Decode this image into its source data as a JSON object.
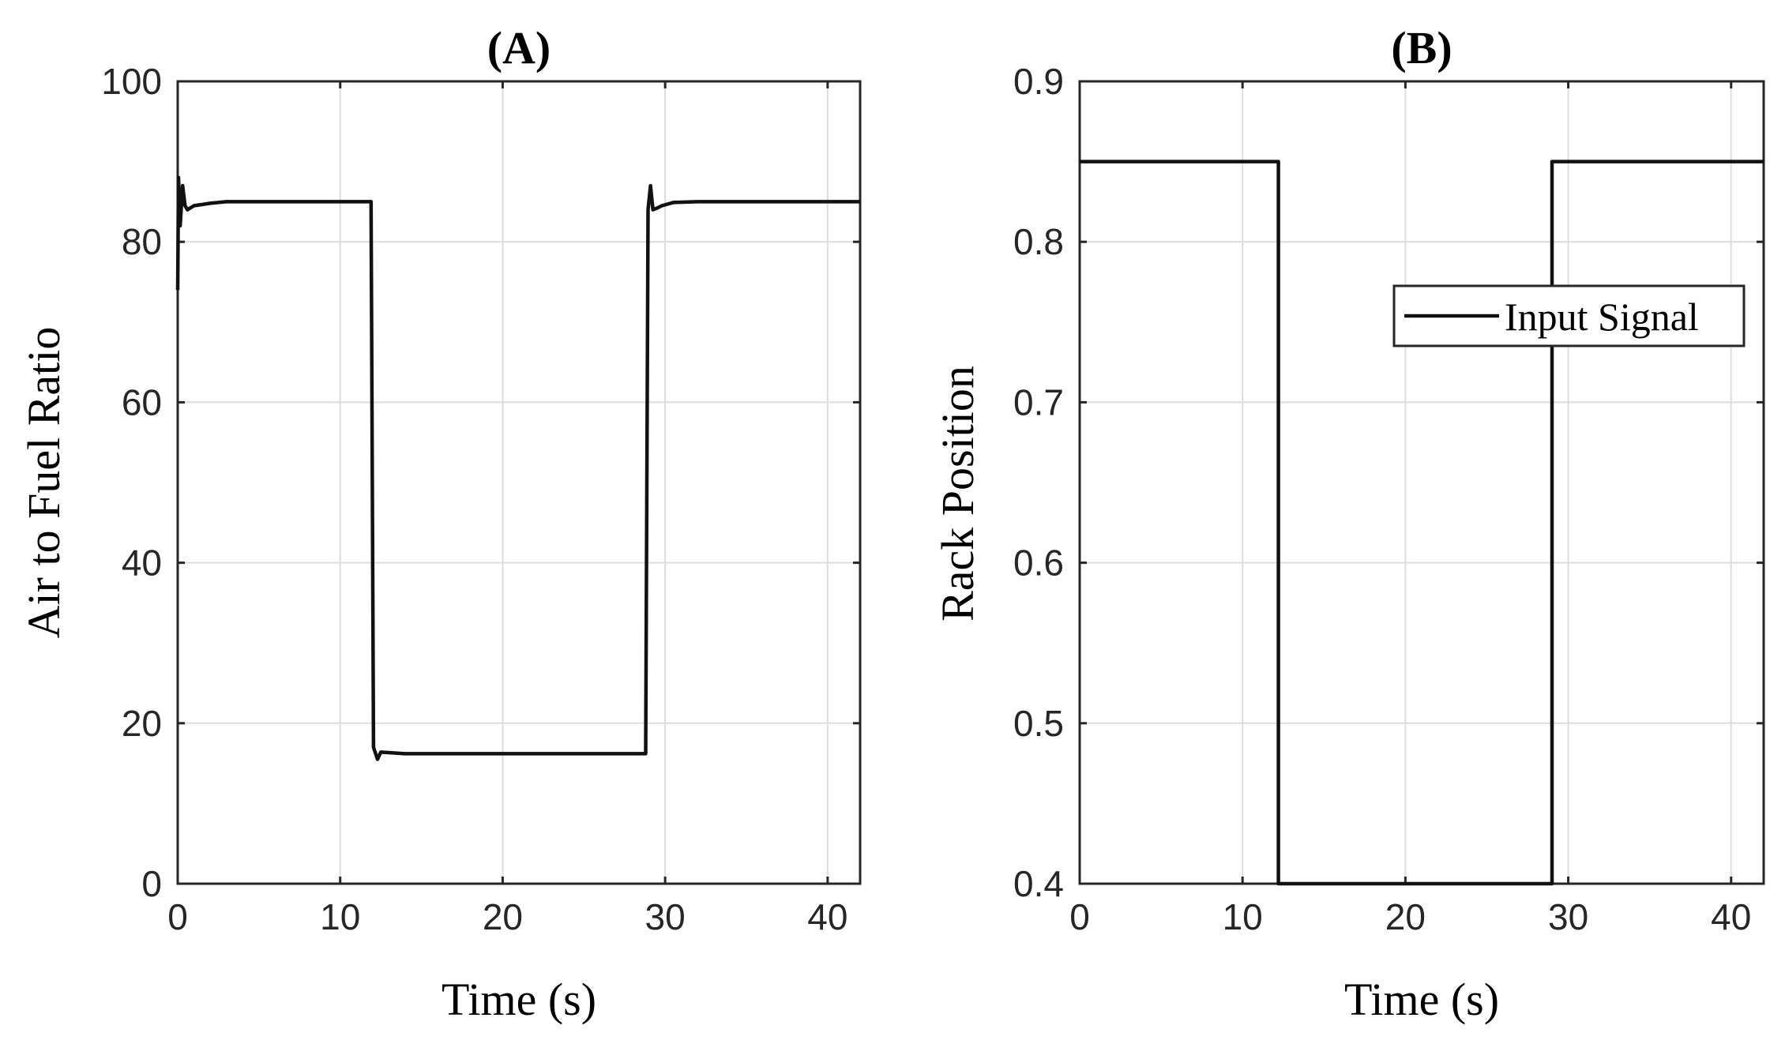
{
  "chart_data": [
    {
      "type": "line",
      "title": "(A)",
      "xlabel": "Time (s)",
      "ylabel": "Air to Fuel Ratio",
      "xlim": [
        0,
        42
      ],
      "ylim": [
        0,
        100
      ],
      "xticks": [
        0,
        10,
        20,
        30,
        40
      ],
      "yticks": [
        0,
        20,
        40,
        60,
        80,
        100
      ],
      "grid": true,
      "legend": null,
      "series": [
        {
          "x": [
            0,
            0.05,
            0.15,
            0.3,
            0.45,
            0.6,
            1,
            2,
            3,
            5,
            8,
            11.9,
            12.05,
            12.3,
            12.5,
            14,
            20,
            25,
            28.8,
            28.95,
            29.1,
            29.25,
            29.5,
            29.8,
            30.5,
            32,
            35,
            40,
            42
          ],
          "y": [
            74,
            88,
            82,
            87,
            84.5,
            84,
            84.5,
            84.8,
            85,
            85,
            85,
            85,
            17,
            15.5,
            16.4,
            16.2,
            16.2,
            16.2,
            16.2,
            84,
            87,
            84,
            84.2,
            84.5,
            84.9,
            85,
            85,
            85,
            85
          ]
        }
      ]
    },
    {
      "type": "line",
      "title": "(B)",
      "xlabel": "Time (s)",
      "ylabel": "Rack Position",
      "xlim": [
        0,
        42
      ],
      "ylim": [
        0.4,
        0.9
      ],
      "xticks": [
        0,
        10,
        20,
        30,
        40
      ],
      "yticks": [
        0.4,
        0.5,
        0.6,
        0.7,
        0.8,
        0.9
      ],
      "grid": true,
      "legend": "upper right",
      "series": [
        {
          "name": "Input Signal",
          "x": [
            0,
            12.2,
            12.2,
            29,
            29,
            42
          ],
          "y": [
            0.85,
            0.85,
            0.4,
            0.4,
            0.85,
            0.85
          ]
        }
      ]
    }
  ]
}
